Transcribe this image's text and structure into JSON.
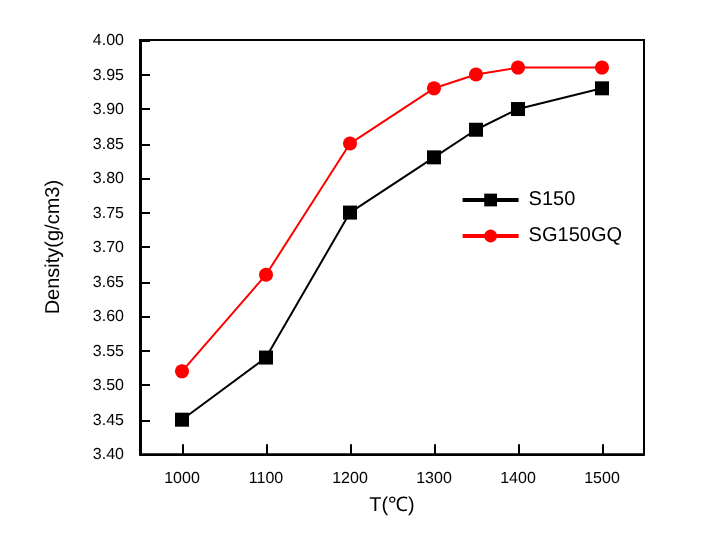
{
  "chart_data": {
    "type": "line",
    "xlabel": "T(℃)",
    "ylabel": "Density(g/cm3)",
    "x": [
      1000,
      1100,
      1200,
      1300,
      1350,
      1400,
      1500
    ],
    "series": [
      {
        "name": "S150",
        "color": "#000000",
        "marker": "square",
        "values": [
          3.45,
          3.54,
          3.75,
          3.83,
          3.87,
          3.9,
          3.93
        ]
      },
      {
        "name": "SG150GQ",
        "color": "#ff0000",
        "marker": "circle",
        "values": [
          3.52,
          3.66,
          3.85,
          3.93,
          3.95,
          3.96,
          3.96
        ]
      }
    ],
    "xlim": [
      950,
      1550
    ],
    "xticks": [
      1000,
      1100,
      1200,
      1300,
      1400,
      1500
    ],
    "ylim": [
      3.4,
      4.0
    ],
    "yticks": [
      {
        "value": 3.4,
        "label": "3.40"
      },
      {
        "value": 3.45,
        "label": "3.45"
      },
      {
        "value": 3.5,
        "label": "3.50"
      },
      {
        "value": 3.55,
        "label": "3.55"
      },
      {
        "value": 3.6,
        "label": "3.60"
      },
      {
        "value": 3.65,
        "label": "3.65"
      },
      {
        "value": 3.7,
        "label": "3.70"
      },
      {
        "value": 3.75,
        "label": "3.75"
      },
      {
        "value": 3.8,
        "label": "3.80"
      },
      {
        "value": 3.85,
        "label": "3.85"
      },
      {
        "value": 3.9,
        "label": "3.90"
      },
      {
        "value": 3.95,
        "label": "3.95"
      },
      {
        "value": 4.0,
        "label": "4.00"
      }
    ],
    "legend": "top right",
    "grid": false,
    "line_style": "solid"
  }
}
